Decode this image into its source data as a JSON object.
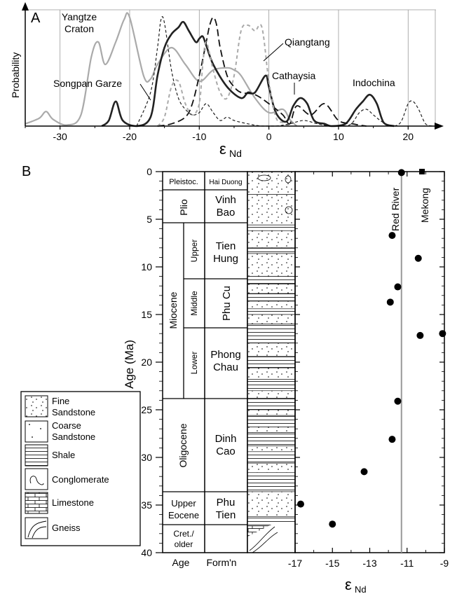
{
  "panel_a": {
    "letter": "A",
    "ylabel": "Probability",
    "xlabel_main": "ε",
    "xlabel_sub": "Nd",
    "xticks": [
      "-30",
      "-20",
      "-10",
      "0",
      "10",
      "20"
    ],
    "labels": {
      "yangtze_1": "Yangtze",
      "yangtze_2": "Craton",
      "songpan": "Songpan Garze",
      "qiangtang": "Qiangtang",
      "cathaysia": "Cathaysia",
      "indochina": "Indochina"
    }
  },
  "panel_b": {
    "letter": "B",
    "ylabel": "Age (Ma)",
    "yticks": [
      "0",
      "5",
      "10",
      "15",
      "20",
      "25",
      "30",
      "35",
      "40"
    ],
    "col_age": "Age",
    "col_form": "Form'n",
    "xtick_left": "-17",
    "xticks": [
      "-17",
      "-15",
      "-13",
      "-11",
      "-9"
    ],
    "xlabel_main": "ε",
    "xlabel_sub": "Nd",
    "red_river": "Red River",
    "mekong": "Mekong",
    "epochs": {
      "pleisto": "Pleistoc.",
      "plio": "Plio",
      "miocene": "Miocene",
      "upper": "Upper",
      "middle": "Middle",
      "lower": "Lower",
      "oligocene": "Oligocene",
      "upper_eocene_1": "Upper",
      "upper_eocene_2": "Eocene",
      "cret_1": "Cret./",
      "cret_2": "older"
    },
    "formations": {
      "hai_duong": "Hai Duong",
      "vinh_1": "Vinh",
      "vinh_2": "Bao",
      "tien_1": "Tien",
      "tien_2": "Hung",
      "phu_cu": "Phu Cu",
      "phong_1": "Phong",
      "phong_2": "Chau",
      "dinh_1": "Dinh",
      "dinh_2": "Cao",
      "phu_1": "Phu",
      "phu_2": "Tien"
    }
  },
  "legend": {
    "fine_1": "Fine",
    "fine_2": "Sandstone",
    "coarse_1": "Coarse",
    "coarse_2": "Sandstone",
    "shale": "Shale",
    "conglomerate": "Conglomerate",
    "limestone": "Limestone",
    "gneiss": "Gneiss"
  },
  "chart_data": [
    {
      "type": "line",
      "panel": "A",
      "xlabel": "εNd",
      "ylabel": "Probability",
      "xlim": [
        -35,
        24
      ],
      "grid": "vertical",
      "series": [
        {
          "name": "Yangtze Craton",
          "style": "solid-gray",
          "x": [
            -35,
            -33,
            -32,
            -31,
            -29,
            -27,
            -25.5,
            -24.5,
            -23.5,
            -22,
            -20.8,
            -20,
            -18,
            -17,
            -16,
            -14,
            -12,
            -10,
            -8,
            -6,
            -5,
            -4,
            -2,
            0,
            2,
            3,
            4
          ],
          "y": [
            0.02,
            0.07,
            0.13,
            0.06,
            0.01,
            0.1,
            0.62,
            0.75,
            0.55,
            0.75,
            0.95,
            0.97,
            0.45,
            0.42,
            0.55,
            0.7,
            0.55,
            0.4,
            0.5,
            0.52,
            0.5,
            0.45,
            0.25,
            0.12,
            0.15,
            0.06,
            0
          ]
        },
        {
          "name": "Songpan Garze",
          "style": "solid-black",
          "x": [
            -24,
            -23,
            -22,
            -21,
            -19,
            -17,
            -16,
            -15,
            -14,
            -13,
            -12.3,
            -11.5,
            -10.5,
            -10,
            -9.5,
            -9,
            -8,
            -6,
            -4,
            -3,
            -2,
            -0.5,
            0,
            1,
            2.5,
            3.5,
            4.5,
            5.5,
            6.5,
            8,
            9,
            11,
            12.5,
            13.5,
            14.5,
            15.5,
            16.5,
            18
          ],
          "y": [
            0,
            0.05,
            0.22,
            0.05,
            0,
            0.08,
            0.45,
            0.7,
            0.82,
            0.88,
            0.93,
            0.85,
            0.75,
            0.78,
            0.8,
            0.72,
            0.55,
            0.35,
            0.25,
            0.3,
            0.3,
            0.45,
            0.35,
            0.12,
            0.04,
            0.18,
            0.25,
            0.2,
            0.05,
            0.02,
            0,
            0.02,
            0.15,
            0.22,
            0.28,
            0.2,
            0.03,
            0
          ]
        },
        {
          "name": "Qiangtang",
          "style": "long-dash-black",
          "x": [
            -16,
            -14,
            -12,
            -11,
            -10,
            -9,
            -8.5,
            -8,
            -7.5,
            -7,
            -6,
            -5,
            -4,
            -2,
            0,
            2,
            3,
            4,
            6,
            8,
            10,
            12,
            14
          ],
          "y": [
            0,
            0.02,
            0.08,
            0.2,
            0.45,
            0.75,
            0.9,
            0.97,
            0.9,
            0.7,
            0.45,
            0.35,
            0.3,
            0.28,
            0.2,
            0.1,
            0.02,
            0.18,
            0.1,
            0.2,
            0.05,
            0.02,
            0
          ]
        },
        {
          "name": "Cathaysia",
          "style": "short-dash-gray",
          "x": [
            -16,
            -15,
            -14,
            -13,
            -12,
            -11,
            -10,
            -9.5,
            -9,
            -8,
            -7,
            -6,
            -5,
            -4,
            -3,
            -2,
            -1,
            0,
            1,
            2,
            3
          ],
          "y": [
            0,
            0.08,
            0.35,
            0.4,
            0.2,
            0.1,
            0.2,
            0.55,
            0.75,
            0.5,
            0.3,
            0.25,
            0.45,
            0.85,
            0.9,
            0.85,
            0.88,
            0.4,
            0.08,
            0.03,
            0
          ]
        },
        {
          "name": "Indochina",
          "style": "short-dash-black",
          "x": [
            -19,
            -17,
            -16,
            -15.5,
            -15,
            -14,
            -13,
            -12,
            -11,
            -10,
            -9,
            -8,
            -7,
            -6,
            -5,
            -3,
            -1,
            1,
            3,
            5,
            7,
            9,
            11,
            12,
            13,
            14,
            15,
            16,
            17,
            18,
            19,
            20,
            20.7,
            21.5,
            22.5,
            23.5
          ],
          "y": [
            0,
            0.3,
            0.7,
            0.95,
            0.92,
            0.5,
            0.25,
            0.15,
            0.1,
            0.12,
            0.2,
            0.12,
            0.05,
            0.08,
            0.05,
            0.02,
            0,
            0,
            0.02,
            0.05,
            0.02,
            0,
            0,
            0.03,
            0.12,
            0.15,
            0.1,
            0.05,
            0.01,
            0,
            0.04,
            0.2,
            0.22,
            0.15,
            0.02,
            0
          ]
        }
      ]
    },
    {
      "type": "scatter",
      "panel": "B",
      "xlabel": "εNd",
      "ylabel": "Age (Ma)",
      "xlim": [
        -17,
        -9
      ],
      "ylim": [
        40,
        0
      ],
      "reference_lines": [
        {
          "name": "Red River",
          "x": -11.3
        }
      ],
      "reference_points": [
        {
          "name": "Mekong",
          "x": -10.2,
          "y": 0
        }
      ],
      "points": [
        {
          "x": -11.3,
          "y": 0.1
        },
        {
          "x": -11.8,
          "y": 6.7
        },
        {
          "x": -10.4,
          "y": 9.1
        },
        {
          "x": -11.5,
          "y": 12.1
        },
        {
          "x": -11.9,
          "y": 13.7
        },
        {
          "x": -10.3,
          "y": 17.2
        },
        {
          "x": -9.1,
          "y": 17.0
        },
        {
          "x": -11.5,
          "y": 24.1
        },
        {
          "x": -11.8,
          "y": 28.1
        },
        {
          "x": -13.3,
          "y": 31.5
        },
        {
          "x": -16.7,
          "y": 34.9
        },
        {
          "x": -15.0,
          "y": 37.0
        }
      ]
    }
  ]
}
